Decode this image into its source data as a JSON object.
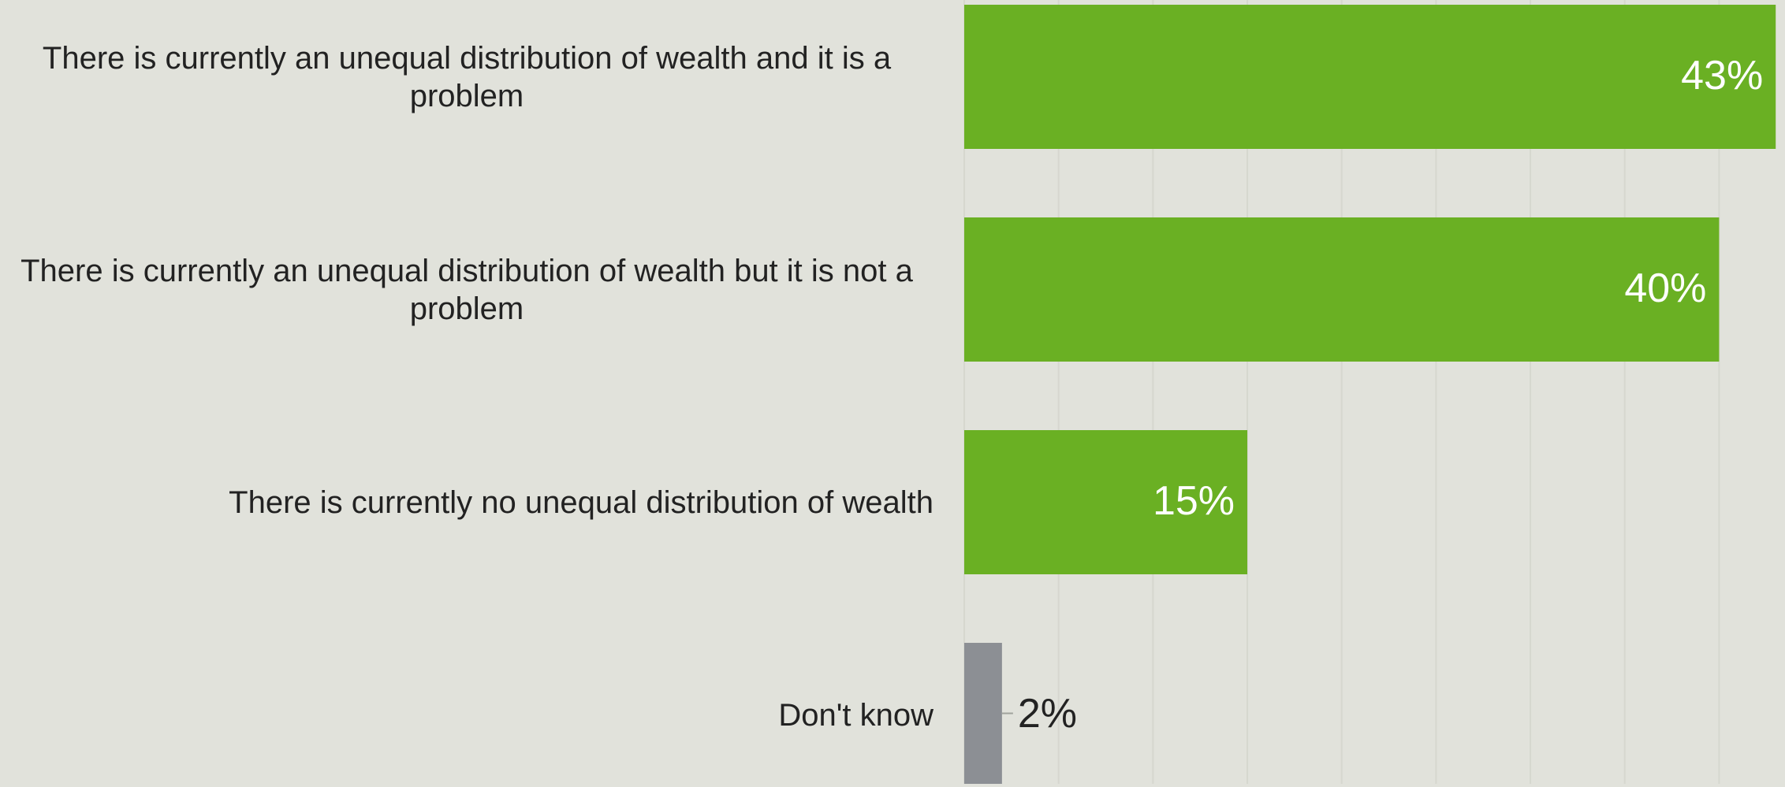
{
  "chart_data": {
    "type": "bar",
    "orientation": "horizontal",
    "categories": [
      "There is currently an unequal distribution of wealth and it is a problem",
      "There is currently an unequal distribution of wealth but it is not a problem",
      "There is currently no unequal distribution of wealth",
      "Don't know"
    ],
    "values": [
      43,
      40,
      15,
      2
    ],
    "value_labels": [
      "43%",
      "40%",
      "15%",
      "2%"
    ],
    "colors": [
      "#6ab023",
      "#6ab023",
      "#6ab023",
      "#8c8f94"
    ],
    "xlim": [
      0,
      43.2
    ],
    "xticks": [
      0,
      5,
      10,
      15,
      20,
      25,
      30,
      35,
      40
    ],
    "grid": true
  }
}
